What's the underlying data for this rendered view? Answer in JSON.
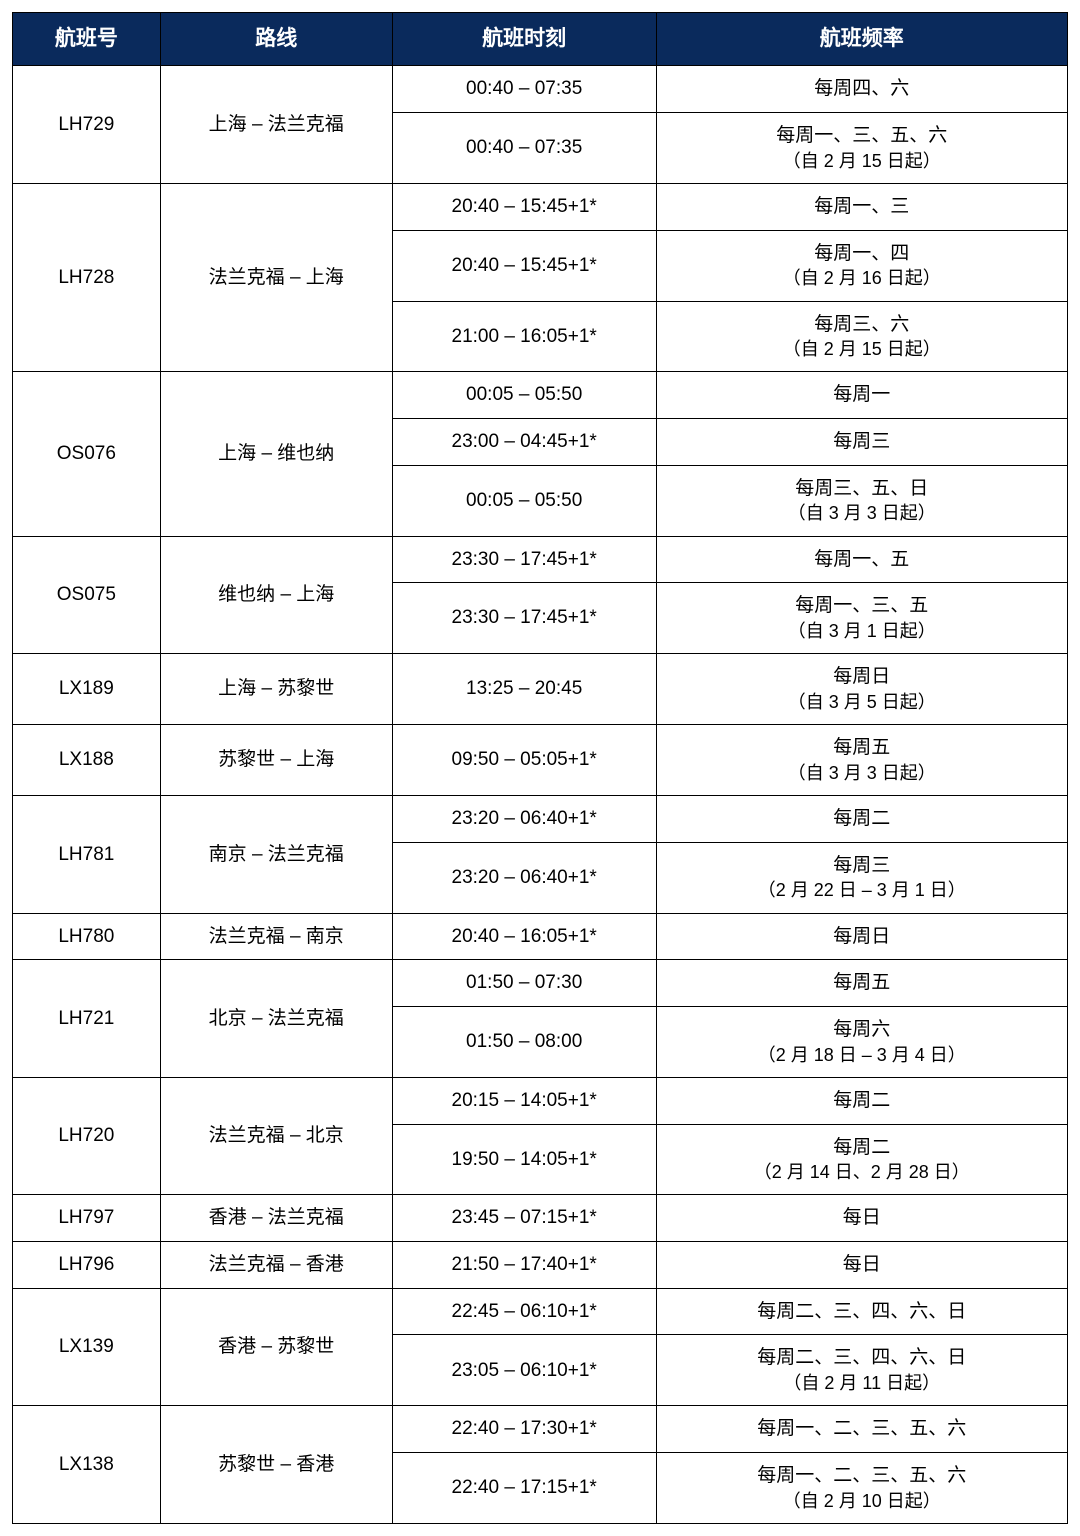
{
  "table": {
    "header_bg": "#0a2a5c",
    "header_fg": "#ffffff",
    "border_color": "#000000",
    "columns": [
      {
        "key": "flight",
        "label": "航班号",
        "width_pct": 14
      },
      {
        "key": "route",
        "label": "路线",
        "width_pct": 22
      },
      {
        "key": "time",
        "label": "航班时刻",
        "width_pct": 25
      },
      {
        "key": "freq",
        "label": "航班频率",
        "width_pct": 39
      }
    ],
    "flights": [
      {
        "flight_no": "LH729",
        "route": "上海 – 法兰克福",
        "schedules": [
          {
            "time": "00:40 – 07:35",
            "freq": "每周四、六"
          },
          {
            "time": "00:40 – 07:35",
            "freq": "每周一、三、五、六",
            "freq_note": "（自 2 月 15 日起）"
          }
        ]
      },
      {
        "flight_no": "LH728",
        "route": "法兰克福 – 上海",
        "schedules": [
          {
            "time": "20:40 – 15:45+1*",
            "freq": "每周一、三"
          },
          {
            "time": "20:40 – 15:45+1*",
            "freq": "每周一、四",
            "freq_note": "（自 2 月 16 日起）"
          },
          {
            "time": "21:00 – 16:05+1*",
            "freq": "每周三、六",
            "freq_note": "（自 2 月 15 日起）"
          }
        ]
      },
      {
        "flight_no": "OS076",
        "route": "上海 – 维也纳",
        "schedules": [
          {
            "time": "00:05 – 05:50",
            "freq": "每周一"
          },
          {
            "time": "23:00 – 04:45+1*",
            "freq": "每周三"
          },
          {
            "time": "00:05 – 05:50",
            "freq": "每周三、五、日",
            "freq_note": "（自 3 月 3 日起）"
          }
        ]
      },
      {
        "flight_no": "OS075",
        "route": "维也纳 – 上海",
        "schedules": [
          {
            "time": "23:30 – 17:45+1*",
            "freq": "每周一、五"
          },
          {
            "time": "23:30 – 17:45+1*",
            "freq": "每周一、三、五",
            "freq_note": "（自 3 月 1 日起）"
          }
        ]
      },
      {
        "flight_no": "LX189",
        "route": "上海 – 苏黎世",
        "schedules": [
          {
            "time": "13:25 – 20:45",
            "freq": "每周日",
            "freq_note": "（自 3 月 5 日起）"
          }
        ]
      },
      {
        "flight_no": "LX188",
        "route": "苏黎世 – 上海",
        "schedules": [
          {
            "time": "09:50 – 05:05+1*",
            "freq": "每周五",
            "freq_note": "（自 3 月 3 日起）"
          }
        ]
      },
      {
        "flight_no": "LH781",
        "route": "南京 – 法兰克福",
        "schedules": [
          {
            "time": "23:20 – 06:40+1*",
            "freq": "每周二"
          },
          {
            "time": "23:20 – 06:40+1*",
            "freq": "每周三",
            "freq_note": "（2 月 22 日 – 3 月 1 日）"
          }
        ]
      },
      {
        "flight_no": "LH780",
        "route": "法兰克福 – 南京",
        "schedules": [
          {
            "time": "20:40 – 16:05+1*",
            "freq": "每周日"
          }
        ]
      },
      {
        "flight_no": "LH721",
        "route": "北京 – 法兰克福",
        "schedules": [
          {
            "time": "01:50 – 07:30",
            "freq": "每周五"
          },
          {
            "time": "01:50 – 08:00",
            "freq": "每周六",
            "freq_note": "（2 月 18 日 – 3 月 4 日）"
          }
        ]
      },
      {
        "flight_no": "LH720",
        "route": "法兰克福 – 北京",
        "schedules": [
          {
            "time": "20:15 – 14:05+1*",
            "freq": "每周二"
          },
          {
            "time": "19:50 – 14:05+1*",
            "freq": "每周二",
            "freq_note": "（2 月 14 日、2 月 28 日）"
          }
        ]
      },
      {
        "flight_no": "LH797",
        "route": "香港 – 法兰克福",
        "schedules": [
          {
            "time": "23:45 – 07:15+1*",
            "freq": "每日"
          }
        ]
      },
      {
        "flight_no": "LH796",
        "route": "法兰克福 – 香港",
        "schedules": [
          {
            "time": "21:50 – 17:40+1*",
            "freq": "每日"
          }
        ]
      },
      {
        "flight_no": "LX139",
        "route": "香港 – 苏黎世",
        "schedules": [
          {
            "time": "22:45 – 06:10+1*",
            "freq": "每周二、三、四、六、日"
          },
          {
            "time": "23:05 – 06:10+1*",
            "freq": "每周二、三、四、六、日",
            "freq_note": "（自 2 月 11 日起）"
          }
        ]
      },
      {
        "flight_no": "LX138",
        "route": "苏黎世 – 香港",
        "schedules": [
          {
            "time": "22:40 – 17:30+1*",
            "freq": "每周一、二、三、五、六"
          },
          {
            "time": "22:40 – 17:15+1*",
            "freq": "每周一、二、三、五、六",
            "freq_note": "（自 2 月 10 日起）"
          }
        ]
      }
    ]
  }
}
